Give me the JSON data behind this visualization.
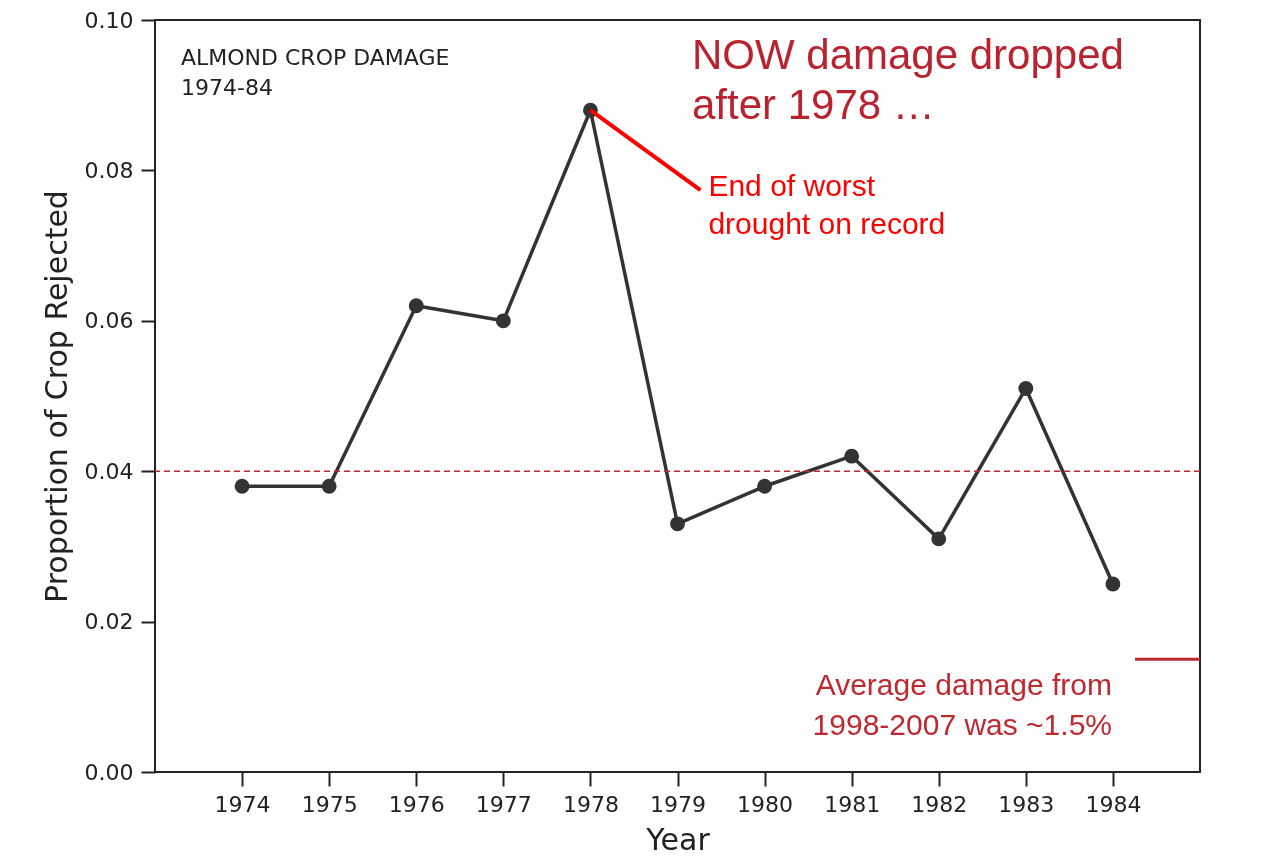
{
  "chart_data": {
    "type": "line",
    "title": "ALMOND CROP DAMAGE 1974-84",
    "xlabel": "Year",
    "ylabel": "Proportion of Crop Rejected",
    "x": [
      1974,
      1975,
      1976,
      1977,
      1978,
      1979,
      1980,
      1981,
      1982,
      1983,
      1984
    ],
    "series": [
      {
        "color": "#333333",
        "values": [
          0.038,
          0.038,
          0.062,
          0.06,
          0.088,
          0.033,
          0.038,
          0.042,
          0.031,
          0.051,
          0.025
        ]
      }
    ],
    "xlim": [
      1973,
      1985
    ],
    "xticks": [
      1974,
      1975,
      1976,
      1977,
      1978,
      1979,
      1980,
      1981,
      1982,
      1983,
      1984
    ],
    "ylim": [
      0,
      0.1
    ],
    "yticks": [
      {
        "value": 0,
        "label": "0.00"
      },
      {
        "value": 0.02,
        "label": "0.02"
      },
      {
        "value": 0.04,
        "label": "0.04"
      },
      {
        "value": 0.06,
        "label": "0.06"
      },
      {
        "value": 0.08,
        "label": "0.08"
      },
      {
        "value": 0.1,
        "label": "0.10"
      }
    ],
    "annotations": [
      "NOW damage dropped after 1978 …",
      {
        "text": "End of worst drought on record",
        "x": 1978,
        "y": 0.088
      }
    ],
    "ref_lines": [
      {
        "axis": "y",
        "value": 0.04,
        "color": "#c0282f",
        "line_style": "dashed"
      },
      {
        "axis": "y",
        "value": 0.015,
        "color": "#c0282f",
        "line_style": "solid",
        "label": "Average damage from 1998-2007 was ~1.5%"
      }
    ],
    "marker": "circle",
    "line_style": "solid",
    "grid": false
  }
}
